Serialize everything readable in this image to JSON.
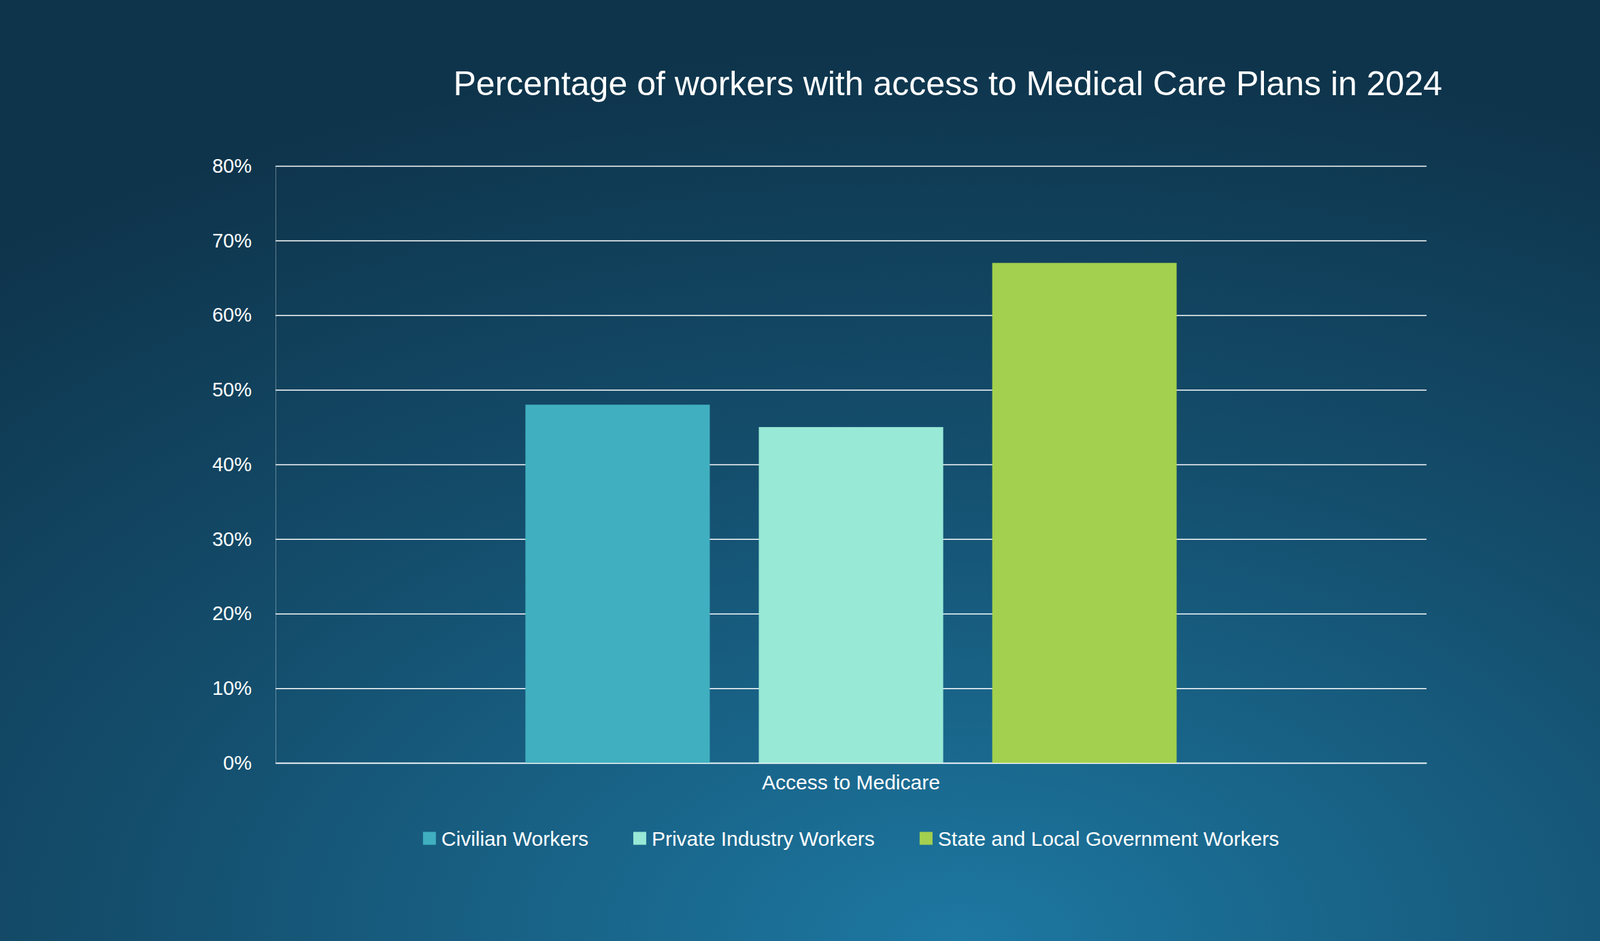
{
  "chart_data": {
    "type": "bar",
    "title": "Percentage of workers with access to Medical Care Plans in 2024",
    "categories": [
      "Access to Medicare"
    ],
    "series": [
      {
        "name": "Civilian Workers",
        "color": "#40afbf",
        "values": [
          48
        ]
      },
      {
        "name": "Private Industry Workers",
        "color": "#98e9d6",
        "values": [
          45
        ]
      },
      {
        "name": "State and Local Government Workers",
        "color": "#a3d04e",
        "values": [
          67
        ]
      }
    ],
    "ylim": [
      0,
      80
    ],
    "yticks": [
      {
        "value": 0,
        "label": "0%"
      },
      {
        "value": 10,
        "label": "10%"
      },
      {
        "value": 20,
        "label": "20%"
      },
      {
        "value": 30,
        "label": "30%"
      },
      {
        "value": 40,
        "label": "40%"
      },
      {
        "value": 50,
        "label": "50%"
      },
      {
        "value": 60,
        "label": "60%"
      },
      {
        "value": 70,
        "label": "70%"
      },
      {
        "value": 80,
        "label": "80%"
      }
    ],
    "grid": true,
    "legend": "bottom"
  }
}
